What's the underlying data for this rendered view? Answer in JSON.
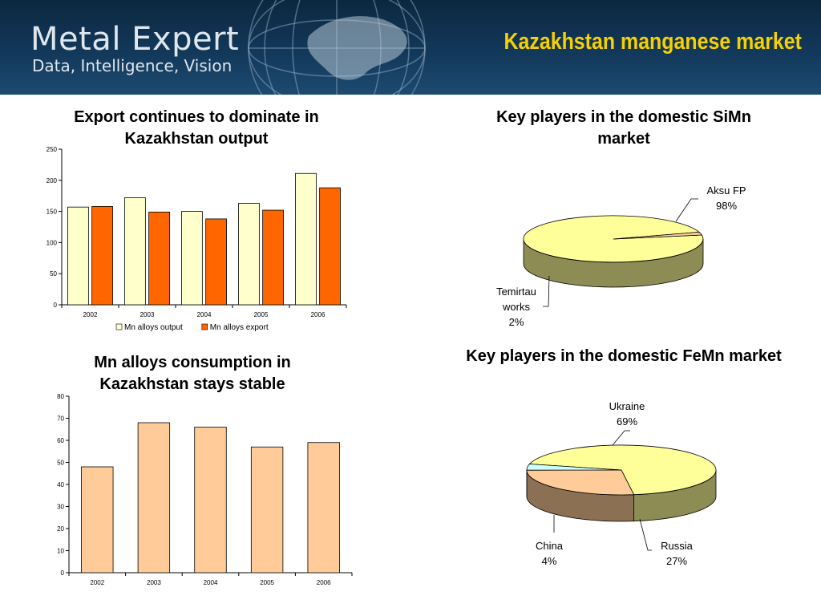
{
  "header": {
    "brand": "Metal Expert",
    "tagline": "Data, Intelligence, Vision",
    "slide_title": "Kazakhstan manganese market"
  },
  "chart_data": [
    {
      "type": "bar",
      "title": "Export continues to dominate in Kazakhstan output",
      "categories": [
        "2002",
        "2003",
        "2004",
        "2005",
        "2006"
      ],
      "series": [
        {
          "name": "Mn alloys output",
          "values": [
            157,
            172,
            150,
            163,
            211
          ],
          "color": "#ffffcc"
        },
        {
          "name": "Mn alloys export",
          "values": [
            158,
            149,
            138,
            152,
            188
          ],
          "color": "#ff6600"
        }
      ],
      "ylim": [
        0,
        250
      ],
      "yticks": [
        0,
        50,
        100,
        150,
        200,
        250
      ],
      "legend": "bottom"
    },
    {
      "type": "bar",
      "title": "Mn alloys consumption in Kazakhstan stays stable",
      "categories": [
        "2002",
        "2003",
        "2004",
        "2005",
        "2006"
      ],
      "series": [
        {
          "values": [
            48,
            68,
            66,
            57,
            59
          ],
          "color": "#ffcc99"
        }
      ],
      "ylim": [
        0,
        80
      ],
      "yticks": [
        0,
        10,
        20,
        30,
        40,
        50,
        60,
        70,
        80
      ]
    },
    {
      "type": "pie",
      "title": "Key players in the domestic SiMn market",
      "slices": [
        {
          "label": "Aksu FP",
          "value": 98,
          "pct": "98%",
          "color": "#ffff99"
        },
        {
          "label": "Temirtau works",
          "value": 2,
          "pct": "2%",
          "color": "#ffcc99"
        }
      ]
    },
    {
      "type": "pie",
      "title": "Key players in the domestic FeMn market",
      "slices": [
        {
          "label": "Ukraine",
          "value": 69,
          "pct": "69%",
          "color": "#ffff99"
        },
        {
          "label": "Russia",
          "value": 27,
          "pct": "27%",
          "color": "#ffcc99"
        },
        {
          "label": "China",
          "value": 4,
          "pct": "4%",
          "color": "#ccffff"
        }
      ]
    }
  ]
}
